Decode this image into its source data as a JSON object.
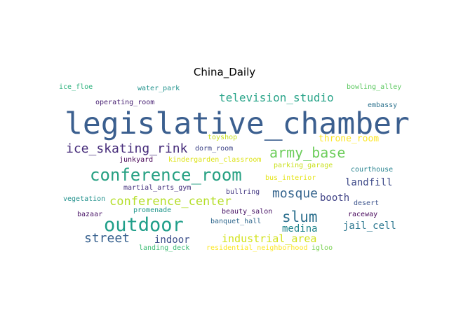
{
  "title": "China_Daily",
  "words": [
    {
      "text": "legislative_chamber",
      "color": "#3b5f8f"
    },
    {
      "text": "television_studio",
      "color": "#2ba58a"
    },
    {
      "text": "ice_skating_rink",
      "color": "#472d7b"
    },
    {
      "text": "army_base",
      "color": "#6ccd5a"
    },
    {
      "text": "conference_room",
      "color": "#25a082"
    },
    {
      "text": "mosque",
      "color": "#33638d"
    },
    {
      "text": "conference_center",
      "color": "#b5de2b"
    },
    {
      "text": "outdoor",
      "color": "#1f9e89"
    },
    {
      "text": "slum",
      "color": "#2d708e"
    },
    {
      "text": "street",
      "color": "#355f8d"
    },
    {
      "text": "indoor",
      "color": "#3c4f8a"
    },
    {
      "text": "industrial_area",
      "color": "#d2e21b"
    },
    {
      "text": "medina",
      "color": "#24868e"
    },
    {
      "text": "jail_cell",
      "color": "#2a768e"
    },
    {
      "text": "landfill",
      "color": "#3e4a89"
    },
    {
      "text": "booth",
      "color": "#414487"
    },
    {
      "text": "throne_room",
      "color": "#fde725"
    },
    {
      "text": "ice_floe",
      "color": "#2db27d"
    },
    {
      "text": "water_park",
      "color": "#20928c"
    },
    {
      "text": "bowling_alley",
      "color": "#5ec962"
    },
    {
      "text": "operating_room",
      "color": "#482173"
    },
    {
      "text": "embassy",
      "color": "#2c728e"
    },
    {
      "text": "toyshop",
      "color": "#c8e020"
    },
    {
      "text": "dorm_room",
      "color": "#404688"
    },
    {
      "text": "junkyard",
      "color": "#440154"
    },
    {
      "text": "kindergarden_classroom",
      "color": "#dde318"
    },
    {
      "text": "parking_garage",
      "color": "#cae11f"
    },
    {
      "text": "courthouse",
      "color": "#26828e"
    },
    {
      "text": "bus_interior",
      "color": "#e5e419"
    },
    {
      "text": "martial_arts_gym",
      "color": "#46327e"
    },
    {
      "text": "bullring",
      "color": "#443983"
    },
    {
      "text": "vegetation",
      "color": "#21918c"
    },
    {
      "text": "desert",
      "color": "#3b528b"
    },
    {
      "text": "bazaar",
      "color": "#481467"
    },
    {
      "text": "promenade",
      "color": "#1f958b"
    },
    {
      "text": "beauty_salon",
      "color": "#471365"
    },
    {
      "text": "raceway",
      "color": "#450559"
    },
    {
      "text": "banquet_hall",
      "color": "#31688e"
    },
    {
      "text": "landing_deck",
      "color": "#3dbc74"
    },
    {
      "text": "residential_neighborhood",
      "color": "#fbe723"
    },
    {
      "text": "igloo",
      "color": "#7ad151"
    }
  ]
}
